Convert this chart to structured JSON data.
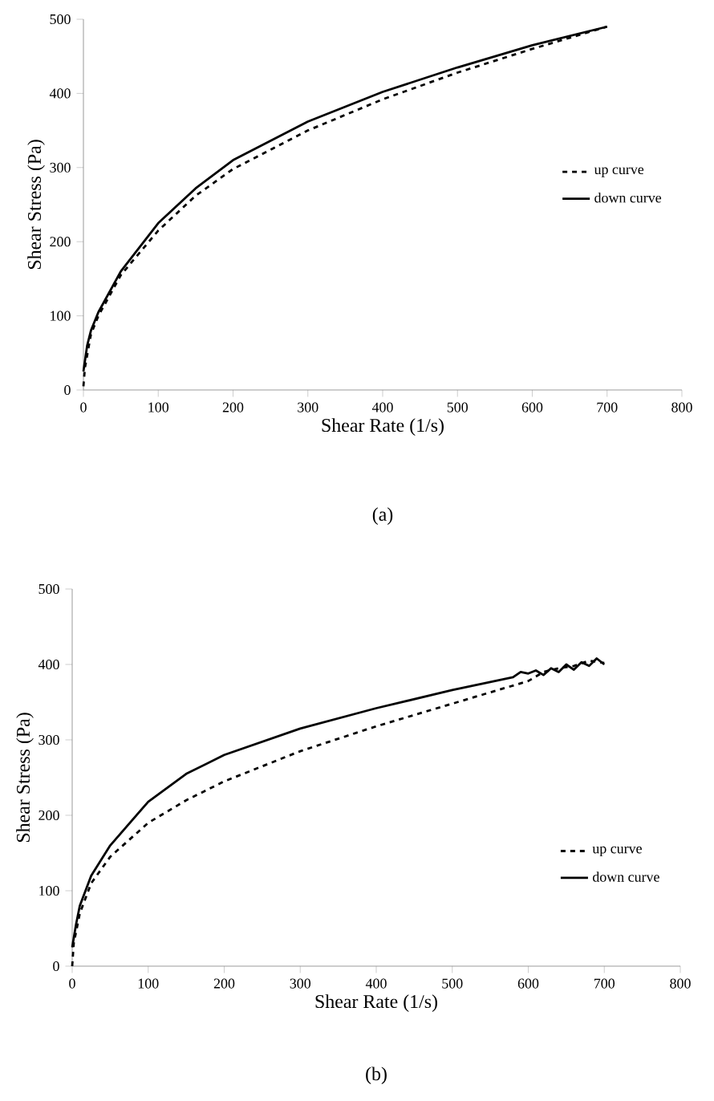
{
  "chart_data": [
    {
      "type": "line",
      "xlabel": "Shear Rate (1/s)",
      "ylabel": "Shear Stress (Pa)",
      "annotations": [
        "(a)"
      ],
      "xlim": [
        0,
        800
      ],
      "ylim": [
        0,
        500
      ],
      "xticks": [
        0,
        100,
        200,
        300,
        400,
        500,
        600,
        700,
        800
      ],
      "yticks": [
        0,
        100,
        200,
        300,
        400,
        500
      ],
      "legend": "right",
      "grid": false,
      "marker": "none",
      "series": [
        {
          "name": "up curve",
          "color": "#000000",
          "line_style": "dashed",
          "x": [
            0,
            2,
            10,
            20,
            50,
            100,
            150,
            200,
            300,
            400,
            500,
            600,
            700
          ],
          "values": [
            5,
            30,
            75,
            100,
            155,
            215,
            262,
            298,
            350,
            392,
            428,
            460,
            490
          ]
        },
        {
          "name": "down curve",
          "color": "#000000",
          "line_style": "solid",
          "x": [
            0,
            5,
            10,
            20,
            50,
            100,
            150,
            200,
            300,
            400,
            500,
            600,
            700
          ],
          "values": [
            25,
            60,
            80,
            105,
            160,
            225,
            272,
            310,
            362,
            402,
            435,
            465,
            490
          ]
        }
      ]
    },
    {
      "type": "line",
      "xlabel": "Shear Rate (1/s)",
      "ylabel": "Shear Stress (Pa)",
      "annotations": [
        "(b)"
      ],
      "xlim": [
        0,
        800
      ],
      "ylim": [
        0,
        500
      ],
      "xticks": [
        0,
        100,
        200,
        300,
        400,
        500,
        600,
        700,
        800
      ],
      "yticks": [
        0,
        100,
        200,
        300,
        400,
        500
      ],
      "legend": "bottom right",
      "grid": false,
      "marker": "none",
      "series": [
        {
          "name": "up curve",
          "color": "#000000",
          "line_style": "dashed",
          "x": [
            0,
            2,
            10,
            25,
            50,
            100,
            150,
            200,
            300,
            400,
            500,
            600,
            620,
            640,
            660,
            680,
            700
          ],
          "values": [
            0,
            30,
            70,
            110,
            145,
            190,
            220,
            245,
            285,
            318,
            348,
            378,
            390,
            395,
            398,
            405,
            402
          ]
        },
        {
          "name": "down curve",
          "color": "#000000",
          "line_style": "solid",
          "x": [
            0,
            5,
            10,
            25,
            50,
            100,
            150,
            200,
            300,
            400,
            500,
            580,
            590,
            600,
            610,
            620,
            630,
            640,
            650,
            660,
            670,
            680,
            690,
            700
          ],
          "values": [
            25,
            55,
            80,
            120,
            160,
            218,
            255,
            280,
            315,
            342,
            366,
            383,
            390,
            388,
            392,
            386,
            395,
            390,
            400,
            393,
            403,
            398,
            408,
            400
          ]
        }
      ]
    }
  ]
}
